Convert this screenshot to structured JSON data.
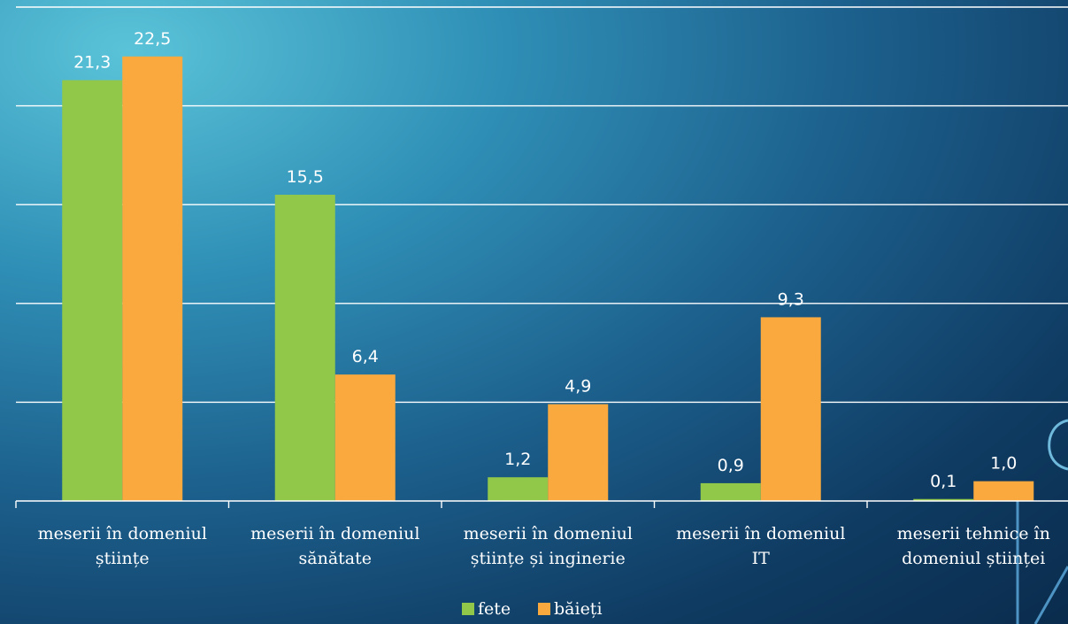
{
  "chart_data": {
    "type": "bar",
    "categories": [
      [
        "meserii în domeniul",
        "științe"
      ],
      [
        "meserii în domeniul",
        "sănătate"
      ],
      [
        "meserii în domeniul",
        "științe și inginerie"
      ],
      [
        "meserii în domeniul",
        "IT"
      ],
      [
        "meserii tehnice în",
        "domeniul științei"
      ]
    ],
    "series": [
      {
        "name": "fete",
        "color": "#92c84a",
        "values": [
          21.3,
          15.5,
          1.2,
          0.9,
          0.1
        ],
        "labels": [
          "21,3",
          "15,5",
          "1,2",
          "0,9",
          "0,1"
        ]
      },
      {
        "name": "băieți",
        "color": "#f9a93d",
        "values": [
          22.5,
          6.4,
          4.9,
          9.3,
          1.0
        ],
        "labels": [
          "22,5",
          "6,4",
          "4,9",
          "9,3",
          "1,0"
        ]
      }
    ],
    "ylim": [
      0,
      25
    ],
    "ystep": 5,
    "grid": true,
    "legend": "bottom"
  }
}
